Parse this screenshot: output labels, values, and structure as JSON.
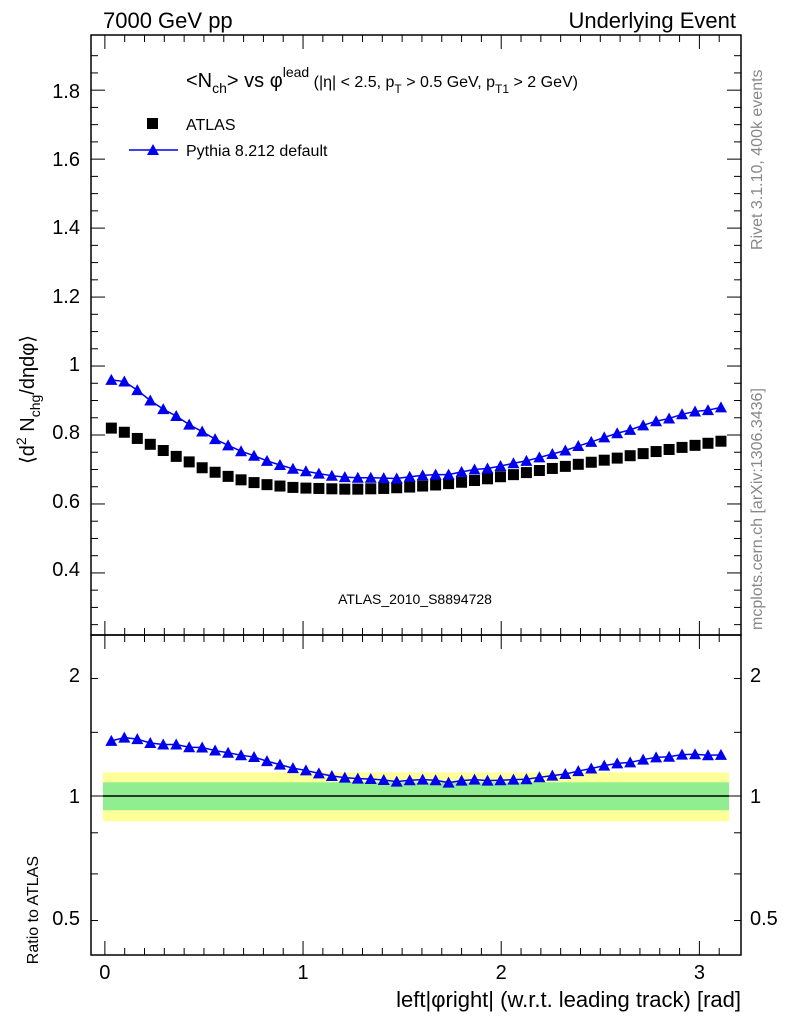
{
  "header": {
    "left": "7000 GeV pp",
    "right": "Underlying Event"
  },
  "side_labels": {
    "rivet": "Rivet 3.1.10,  400k events",
    "mcplots": "mcplots.cern.ch [arXiv:1306.3436]"
  },
  "watermark": "ATLAS_2010_S8894728",
  "colors": {
    "data": "#000000",
    "mc": "#0000ee",
    "band_inner": "#90ee90",
    "band_outer": "#ffff99"
  },
  "chart_data": [
    {
      "type": "scatter",
      "title_parts": {
        "n": "<N",
        "ch": "ch",
        "gt": ">",
        "vs": " vs ",
        "phi": "φ",
        "lead": "lead",
        "cuts_a": " (|η| < 2.5, p",
        "T": "T",
        "cuts_b": " > 0.5 GeV, p",
        "T1": "T1",
        "cuts_c": " > 2 GeV)"
      },
      "ylabel_parts": {
        "open": "⟨d",
        "two": "2",
        "mid": " N",
        "chg": "chg",
        "close": "/dηdφ⟩"
      },
      "ylim": [
        0.22,
        1.96
      ],
      "yticks": [
        "0.4",
        "0.6",
        "0.8",
        "1",
        "1.2",
        "1.4",
        "1.6",
        "1.8"
      ],
      "legend": {
        "position": "top-left",
        "entries": [
          "ATLAS",
          "Pythia 8.212 default"
        ]
      },
      "x": [
        0.0327,
        0.0982,
        0.1636,
        0.2291,
        0.2945,
        0.36,
        0.4254,
        0.4909,
        0.5563,
        0.6218,
        0.6872,
        0.7527,
        0.8181,
        0.8836,
        0.949,
        1.0145,
        1.0799,
        1.1454,
        1.2108,
        1.2763,
        1.3417,
        1.4072,
        1.4726,
        1.5381,
        1.6035,
        1.669,
        1.7344,
        1.7999,
        1.8653,
        1.9308,
        1.9962,
        2.0617,
        2.1271,
        2.1926,
        2.258,
        2.3235,
        2.3889,
        2.4544,
        2.5198,
        2.5853,
        2.6507,
        2.7162,
        2.7816,
        2.8471,
        2.9125,
        2.978,
        3.0434,
        3.1089
      ],
      "series": [
        {
          "name": "ATLAS",
          "marker": "square",
          "values": [
            0.82,
            0.808,
            0.79,
            0.773,
            0.755,
            0.738,
            0.722,
            0.705,
            0.692,
            0.68,
            0.67,
            0.662,
            0.656,
            0.652,
            0.648,
            0.646,
            0.645,
            0.644,
            0.643,
            0.643,
            0.644,
            0.645,
            0.647,
            0.649,
            0.652,
            0.655,
            0.659,
            0.663,
            0.668,
            0.673,
            0.679,
            0.685,
            0.691,
            0.697,
            0.703,
            0.709,
            0.715,
            0.721,
            0.727,
            0.733,
            0.74,
            0.746,
            0.752,
            0.758,
            0.764,
            0.77,
            0.776,
            0.782
          ]
        },
        {
          "name": "Pythia 8.212 default",
          "marker": "triangle",
          "values": [
            0.96,
            0.955,
            0.93,
            0.9,
            0.875,
            0.855,
            0.83,
            0.81,
            0.788,
            0.77,
            0.753,
            0.74,
            0.725,
            0.713,
            0.702,
            0.695,
            0.688,
            0.682,
            0.678,
            0.676,
            0.676,
            0.675,
            0.674,
            0.679,
            0.683,
            0.685,
            0.685,
            0.693,
            0.7,
            0.703,
            0.71,
            0.718,
            0.725,
            0.735,
            0.745,
            0.755,
            0.768,
            0.78,
            0.793,
            0.805,
            0.815,
            0.828,
            0.84,
            0.848,
            0.86,
            0.868,
            0.872,
            0.88
          ]
        }
      ]
    },
    {
      "type": "line",
      "ylabel": "Ratio to ATLAS",
      "xlabel": "left|φright| (w.r.t. leading track) [rad]",
      "yticks": [
        "0.5",
        "1",
        "2"
      ],
      "xticks": [
        "0",
        "1",
        "2",
        "3"
      ],
      "xlim": [
        -0.07,
        3.21
      ],
      "log_y": true,
      "series": [
        {
          "name": "Pythia 8.212 default",
          "values": [
            1.171,
            1.182,
            1.177,
            1.164,
            1.159,
            1.159,
            1.15,
            1.149,
            1.139,
            1.132,
            1.124,
            1.118,
            1.105,
            1.094,
            1.083,
            1.076,
            1.067,
            1.059,
            1.054,
            1.051,
            1.05,
            1.047,
            1.042,
            1.046,
            1.048,
            1.046,
            1.039,
            1.045,
            1.048,
            1.045,
            1.046,
            1.048,
            1.049,
            1.055,
            1.06,
            1.065,
            1.074,
            1.082,
            1.091,
            1.098,
            1.101,
            1.11,
            1.117,
            1.119,
            1.126,
            1.127,
            1.124,
            1.125
          ]
        }
      ],
      "band_inner": [
        0.96,
        1.04
      ],
      "band_outer": [
        0.93,
        1.07
      ]
    }
  ]
}
